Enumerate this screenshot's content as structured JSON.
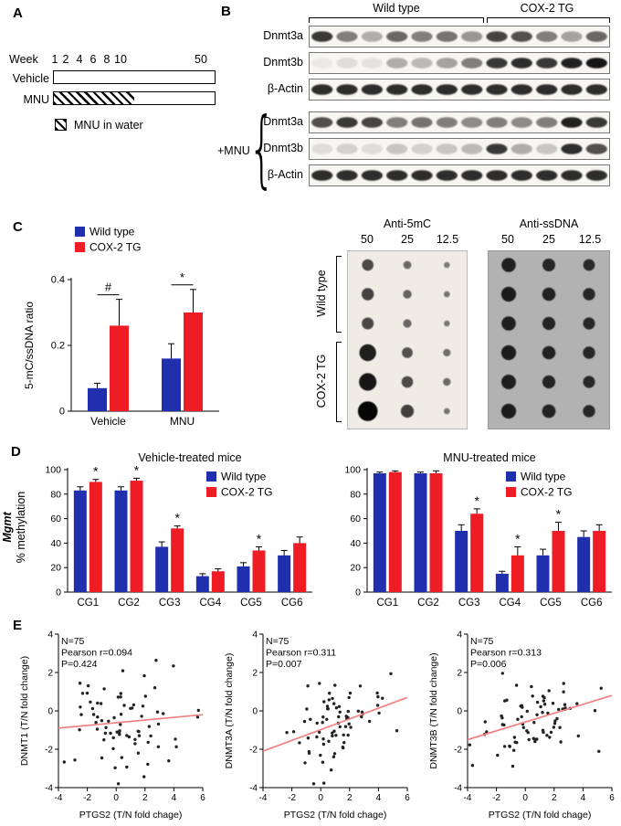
{
  "colors": {
    "wild_type": "#1f2fae",
    "cox2_tg": "#ee1c25",
    "regression_line": "#f28080",
    "scatter_point": "#222222"
  },
  "panelA": {
    "label": "A",
    "week_label": "Week",
    "week_ticks": [
      "1",
      "2",
      "4",
      "6",
      "8",
      "10",
      "50"
    ],
    "vehicle_label": "Vehicle",
    "mnu_label": "MNU",
    "legend_label": "MNU in water"
  },
  "panelB": {
    "label": "B",
    "group_labels": [
      "Wild type",
      "COX-2 TG"
    ],
    "mnu_group_label": "+MNU",
    "brace": "{",
    "blot_rows": [
      {
        "name": "Dnmt3a",
        "lanes": [
          0.8,
          0.5,
          0.3,
          0.6,
          0.5,
          0.55,
          0.4,
          0.75,
          0.7,
          0.5,
          0.35,
          0.6
        ]
      },
      {
        "name": "Dnmt3b",
        "lanes": [
          0.05,
          0.1,
          0.08,
          0.3,
          0.25,
          0.35,
          0.5,
          0.8,
          0.85,
          0.8,
          0.9,
          0.95
        ]
      },
      {
        "name": "β-Actin",
        "lanes": [
          0.85,
          0.85,
          0.85,
          0.85,
          0.85,
          0.85,
          0.85,
          0.85,
          0.85,
          0.85,
          0.85,
          0.85
        ]
      }
    ],
    "mnu_blot_rows": [
      {
        "name": "Dnmt3a",
        "lanes": [
          0.7,
          0.8,
          0.75,
          0.5,
          0.55,
          0.5,
          0.45,
          0.5,
          0.45,
          0.5,
          0.9,
          0.8
        ]
      },
      {
        "name": "Dnmt3b",
        "lanes": [
          0.1,
          0.15,
          0.1,
          0.2,
          0.15,
          0.2,
          0.25,
          0.8,
          0.3,
          0.2,
          0.85,
          0.7
        ]
      },
      {
        "name": "β-Actin",
        "lanes": [
          0.85,
          0.85,
          0.85,
          0.85,
          0.85,
          0.85,
          0.85,
          0.85,
          0.85,
          0.85,
          0.85,
          0.85
        ]
      }
    ],
    "dot_blot": {
      "titles": [
        "Anti-5mC",
        "Anti-ssDNA"
      ],
      "concentrations": [
        "50",
        "25",
        "12.5"
      ],
      "row_group_labels": [
        "Wild type",
        "COX-2 TG"
      ],
      "anti_5mc_dots": [
        [
          0.45,
          0.22,
          0.08
        ],
        [
          0.5,
          0.26,
          0.1
        ],
        [
          0.48,
          0.24,
          0.09
        ],
        [
          0.8,
          0.4,
          0.18
        ],
        [
          0.85,
          0.45,
          0.2
        ],
        [
          1.0,
          0.55,
          0.1
        ]
      ],
      "anti_ssdna_dots": [
        [
          0.8,
          0.65,
          0.55
        ],
        [
          0.85,
          0.7,
          0.6
        ],
        [
          0.8,
          0.68,
          0.58
        ],
        [
          0.85,
          0.7,
          0.6
        ],
        [
          0.82,
          0.68,
          0.58
        ],
        [
          0.85,
          0.72,
          0.6
        ]
      ]
    }
  },
  "panelC": {
    "label": "C"
  },
  "panelD": {
    "label": "D",
    "gene_label": "Mgmt"
  },
  "panelE": {
    "label": "E"
  },
  "chart_data": [
    {
      "id": "c-bar",
      "type": "bar",
      "categories": [
        "Vehicle",
        "MNU"
      ],
      "series": [
        {
          "name": "Wild type",
          "values": [
            0.07,
            0.16
          ],
          "errors": [
            0.015,
            0.045
          ]
        },
        {
          "name": "COX-2 TG",
          "values": [
            0.26,
            0.3
          ],
          "errors": [
            0.08,
            0.07
          ]
        }
      ],
      "sig": [
        {
          "category": "Vehicle",
          "symbol": "#",
          "span": true
        },
        {
          "category": "MNU",
          "symbol": "*",
          "span": true
        }
      ],
      "ylabel": "5-mC/ssDNA ratio",
      "ylim": [
        0,
        0.4
      ],
      "yticks": [
        0,
        0.2,
        0.4
      ]
    },
    {
      "id": "d-vehicle",
      "type": "bar",
      "title": "Vehicle-treated mice",
      "categories": [
        "CG1",
        "CG2",
        "CG3",
        "CG4",
        "CG5",
        "CG6"
      ],
      "series": [
        {
          "name": "Wild type",
          "values": [
            83,
            83,
            37,
            13,
            21,
            30
          ],
          "errors": [
            3,
            3,
            4,
            2,
            3,
            4
          ]
        },
        {
          "name": "COX-2 TG",
          "values": [
            90,
            91,
            52,
            17,
            34,
            40
          ],
          "errors": [
            2,
            2,
            2,
            2,
            3,
            5
          ]
        }
      ],
      "sig": [
        {
          "category": "CG1",
          "symbol": "*"
        },
        {
          "category": "CG2",
          "symbol": "*"
        },
        {
          "category": "CG3",
          "symbol": "*"
        },
        {
          "category": "CG5",
          "symbol": "*"
        }
      ],
      "ylabel": "% methylation",
      "ylim": [
        0,
        100
      ],
      "yticks": [
        0,
        20,
        40,
        60,
        80,
        100
      ]
    },
    {
      "id": "d-mnu",
      "type": "bar",
      "title": "MNU-treated mice",
      "categories": [
        "CG1",
        "CG2",
        "CG3",
        "CG4",
        "CG5",
        "CG6"
      ],
      "series": [
        {
          "name": "Wild type",
          "values": [
            97,
            97,
            50,
            15,
            30,
            45
          ],
          "errors": [
            1,
            1,
            5,
            2,
            5,
            5
          ]
        },
        {
          "name": "COX-2 TG",
          "values": [
            98,
            97,
            64,
            30,
            50,
            50
          ],
          "errors": [
            1,
            2,
            4,
            7,
            7,
            5
          ]
        }
      ],
      "sig": [
        {
          "category": "CG3",
          "symbol": "*"
        },
        {
          "category": "CG4",
          "symbol": "*"
        },
        {
          "category": "CG5",
          "symbol": "*"
        }
      ],
      "ylim": [
        0,
        100
      ],
      "yticks": [
        0,
        20,
        40,
        60,
        80,
        100
      ]
    },
    {
      "id": "e-dnmt1",
      "type": "scatter",
      "n": 75,
      "stats": [
        "N=75",
        "Pearson r=0.094",
        "P=0.424"
      ],
      "xlabel": "PTGS2 (T/N fold chage)",
      "ylabel": "DNMT1 (T/N fold change)",
      "xlim": [
        -4,
        6
      ],
      "ylim": [
        -4,
        4
      ],
      "xticks": [
        -4,
        -2,
        0,
        2,
        4,
        6
      ],
      "yticks": [
        -4,
        -2,
        0,
        2,
        4
      ],
      "regression_line": {
        "x1": -4,
        "y1": -0.9,
        "x2": 6,
        "y2": -0.2
      }
    },
    {
      "id": "e-dnmt3a",
      "type": "scatter",
      "n": 75,
      "stats": [
        "N=75",
        "Pearson r=0.311",
        "P=0.007"
      ],
      "xlabel": "PTGS2 (T/N fold chage)",
      "ylabel": "DNMT3A (T/N fold change)",
      "xlim": [
        -4,
        6
      ],
      "ylim": [
        -4,
        4
      ],
      "xticks": [
        -4,
        -2,
        0,
        2,
        4,
        6
      ],
      "yticks": [
        -4,
        -2,
        0,
        2,
        4
      ],
      "regression_line": {
        "x1": -4,
        "y1": -2.1,
        "x2": 6,
        "y2": 0.7
      }
    },
    {
      "id": "e-dnmt3b",
      "type": "scatter",
      "n": 75,
      "stats": [
        "N=75",
        "Pearson r=0.313",
        "P=0.006"
      ],
      "xlabel": "PTGS2 (T/N fold chage)",
      "ylabel": "DNMT3B (T/N fold change)",
      "xlim": [
        -4,
        6
      ],
      "ylim": [
        -4,
        4
      ],
      "xticks": [
        -4,
        -2,
        0,
        2,
        4,
        6
      ],
      "yticks": [
        -4,
        -2,
        0,
        2,
        4
      ],
      "regression_line": {
        "x1": -4,
        "y1": -1.5,
        "x2": 6,
        "y2": 0.8
      }
    }
  ]
}
